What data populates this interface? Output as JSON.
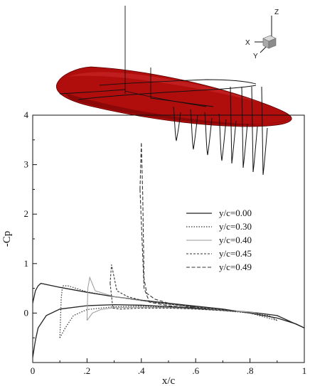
{
  "chart_data": {
    "type": "line",
    "xlabel": "x/c",
    "ylabel": "-Cp",
    "xlim": [
      0,
      1
    ],
    "ylim": [
      -1,
      4
    ],
    "x_ticks": [
      {
        "value": 0,
        "label": "0"
      },
      {
        "value": 0.2,
        "label": ".2"
      },
      {
        "value": 0.4,
        "label": ".4"
      },
      {
        "value": 0.6,
        "label": ".6"
      },
      {
        "value": 0.8,
        "label": ".8"
      },
      {
        "value": 1,
        "label": "1"
      }
    ],
    "y_ticks": [
      {
        "value": 0,
        "label": "0"
      },
      {
        "value": 1,
        "label": "1"
      },
      {
        "value": 2,
        "label": "2"
      },
      {
        "value": 3,
        "label": "3"
      },
      {
        "value": 4,
        "label": "4"
      }
    ],
    "grid": false,
    "legend_position": "right-middle",
    "series": [
      {
        "name": "y/c=0.00",
        "style": "solid",
        "color": "#222222",
        "upper": [
          [
            0,
            0.2
          ],
          [
            0.01,
            0.45
          ],
          [
            0.02,
            0.55
          ],
          [
            0.03,
            0.6
          ],
          [
            0.1,
            0.52
          ],
          [
            0.2,
            0.42
          ],
          [
            0.3,
            0.33
          ],
          [
            0.4,
            0.26
          ],
          [
            0.5,
            0.2
          ],
          [
            0.6,
            0.14
          ],
          [
            0.7,
            0.08
          ],
          [
            0.8,
            0.0
          ],
          [
            0.9,
            -0.1
          ],
          [
            0.97,
            -0.22
          ],
          [
            1,
            -0.3
          ]
        ],
        "lower": [
          [
            0,
            -0.9
          ],
          [
            0.01,
            -0.55
          ],
          [
            0.02,
            -0.3
          ],
          [
            0.05,
            -0.05
          ],
          [
            0.1,
            0.08
          ],
          [
            0.2,
            0.15
          ],
          [
            0.3,
            0.17
          ],
          [
            0.4,
            0.16
          ],
          [
            0.5,
            0.13
          ],
          [
            0.6,
            0.1
          ],
          [
            0.7,
            0.06
          ],
          [
            0.8,
            0.02
          ],
          [
            0.9,
            -0.05
          ],
          [
            1,
            -0.3
          ]
        ]
      },
      {
        "name": "y/c=0.30",
        "style": "dotted",
        "color": "#333333",
        "upper": [
          [
            0.1,
            -0.5
          ],
          [
            0.105,
            0.3
          ],
          [
            0.11,
            0.55
          ],
          [
            0.13,
            0.55
          ],
          [
            0.2,
            0.43
          ],
          [
            0.3,
            0.33
          ],
          [
            0.4,
            0.25
          ],
          [
            0.5,
            0.18
          ],
          [
            0.6,
            0.12
          ],
          [
            0.7,
            0.06
          ],
          [
            0.8,
            0.0
          ],
          [
            0.87,
            -0.05
          ],
          [
            0.9,
            -0.15
          ]
        ],
        "lower": [
          [
            0.1,
            -0.5
          ],
          [
            0.12,
            -0.3
          ],
          [
            0.15,
            -0.05
          ],
          [
            0.2,
            0.07
          ],
          [
            0.3,
            0.13
          ],
          [
            0.4,
            0.14
          ],
          [
            0.5,
            0.12
          ],
          [
            0.6,
            0.09
          ],
          [
            0.7,
            0.05
          ],
          [
            0.8,
            0.0
          ],
          [
            0.9,
            -0.15
          ]
        ]
      },
      {
        "name": "y/c=0.40",
        "style": "solid-light",
        "color": "#9a9a9a",
        "upper": [
          [
            0.2,
            -0.15
          ],
          [
            0.203,
            0.5
          ],
          [
            0.21,
            0.72
          ],
          [
            0.23,
            0.45
          ],
          [
            0.3,
            0.33
          ],
          [
            0.4,
            0.25
          ],
          [
            0.5,
            0.18
          ],
          [
            0.6,
            0.12
          ],
          [
            0.7,
            0.06
          ],
          [
            0.8,
            0.02
          ],
          [
            0.82,
            0.0
          ]
        ],
        "lower": [
          [
            0.2,
            -0.15
          ],
          [
            0.22,
            0.0
          ],
          [
            0.25,
            0.07
          ],
          [
            0.3,
            0.11
          ],
          [
            0.4,
            0.12
          ],
          [
            0.5,
            0.11
          ],
          [
            0.6,
            0.08
          ],
          [
            0.7,
            0.05
          ],
          [
            0.8,
            0.02
          ],
          [
            0.82,
            0.0
          ]
        ]
      },
      {
        "name": "y/c=0.45",
        "style": "short-dash",
        "color": "#333333",
        "upper": [
          [
            0.285,
            0.6
          ],
          [
            0.29,
            0.98
          ],
          [
            0.295,
            0.85
          ],
          [
            0.31,
            0.45
          ],
          [
            0.35,
            0.33
          ],
          [
            0.4,
            0.26
          ],
          [
            0.5,
            0.18
          ],
          [
            0.6,
            0.12
          ],
          [
            0.7,
            0.06
          ],
          [
            0.75,
            0.03
          ]
        ],
        "lower": [
          [
            0.285,
            0.6
          ],
          [
            0.295,
            0.1
          ],
          [
            0.32,
            0.08
          ],
          [
            0.4,
            0.1
          ],
          [
            0.5,
            0.1
          ],
          [
            0.6,
            0.08
          ],
          [
            0.7,
            0.05
          ],
          [
            0.75,
            0.03
          ]
        ]
      },
      {
        "name": "y/c=0.49",
        "style": "long-dash",
        "color": "#333333",
        "upper": [
          [
            0.395,
            2.5
          ],
          [
            0.4,
            3.45
          ],
          [
            0.405,
            2.4
          ],
          [
            0.41,
            0.7
          ],
          [
            0.42,
            0.4
          ],
          [
            0.45,
            0.28
          ],
          [
            0.5,
            0.2
          ],
          [
            0.55,
            0.15
          ],
          [
            0.6,
            0.12
          ]
        ],
        "lower": [
          [
            0.395,
            2.5
          ],
          [
            0.41,
            0.5
          ],
          [
            0.43,
            0.22
          ],
          [
            0.5,
            0.15
          ],
          [
            0.55,
            0.12
          ],
          [
            0.6,
            0.12
          ]
        ]
      }
    ]
  },
  "triad": {
    "x_label": "X",
    "y_label": "Y",
    "z_label": "Z"
  },
  "wing_color": "#b00d0d"
}
